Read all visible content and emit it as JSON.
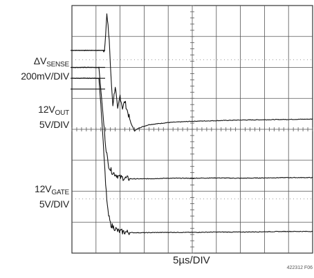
{
  "chart_data": {
    "type": "line",
    "title": "",
    "x_divisions": 10,
    "y_divisions": 8,
    "time_scale": "5µs/DIV",
    "xlabel": "5µs/DIV",
    "grid": true,
    "series": [
      {
        "name": "ΔV_SENSE",
        "scale": "200mV/DIV",
        "unit": "div",
        "x": [
          0,
          1.0,
          1.35,
          1.45,
          1.55,
          1.62,
          1.7,
          1.8,
          1.9,
          2.0,
          2.1,
          2.2,
          2.3,
          2.45,
          2.6,
          2.8,
          3.2,
          4,
          5,
          6,
          7,
          8,
          9,
          10
        ],
        "y": [
          6.55,
          6.55,
          6.55,
          7.7,
          6.9,
          5.7,
          4.8,
          5.4,
          4.6,
          5.1,
          4.7,
          4.9,
          4.6,
          4.2,
          3.95,
          4.05,
          4.15,
          4.22,
          4.26,
          4.28,
          4.3,
          4.31,
          4.32,
          4.33
        ]
      },
      {
        "name": "12V_OUT",
        "scale": "5V/DIV",
        "unit": "div",
        "x": [
          0,
          1.0,
          1.12,
          1.2,
          1.3,
          1.4,
          1.5,
          1.6,
          1.7,
          1.8,
          1.9,
          2.0,
          2.2,
          2.5,
          3,
          4,
          5,
          6,
          7,
          8,
          9,
          10
        ],
        "y": [
          6.0,
          6.0,
          6.0,
          5.3,
          4.4,
          3.5,
          2.9,
          2.7,
          2.6,
          2.55,
          2.5,
          2.45,
          2.42,
          2.4,
          2.4,
          2.42,
          2.42,
          2.43,
          2.42,
          2.43,
          2.44,
          2.44
        ]
      },
      {
        "name": "12V_GATE",
        "scale": "5V/DIV",
        "unit": "div",
        "x": [
          0,
          1.0,
          1.12,
          1.2,
          1.3,
          1.4,
          1.5,
          1.6,
          1.7,
          1.8,
          1.9,
          2.0,
          2.2,
          2.5,
          3,
          4,
          5,
          6,
          7,
          8,
          9,
          10
        ],
        "y": [
          5.65,
          5.65,
          5.65,
          4.8,
          3.6,
          2.2,
          1.3,
          0.95,
          0.85,
          0.8,
          0.72,
          0.7,
          0.68,
          0.66,
          0.66,
          0.67,
          0.67,
          0.68,
          0.68,
          0.69,
          0.7,
          0.7
        ]
      }
    ]
  },
  "labels": {
    "sense_prefix": "ΔV",
    "sense_sub": "SENSE",
    "sense_scale": "200mV/DIV",
    "out_prefix": "12V",
    "out_sub": "OUT",
    "out_scale": "5V/DIV",
    "gate_prefix": "12V",
    "gate_sub": "GATE",
    "gate_scale": "5V/DIV",
    "time_scale": "5µs/DIV",
    "figure_id": "422312 F06"
  }
}
